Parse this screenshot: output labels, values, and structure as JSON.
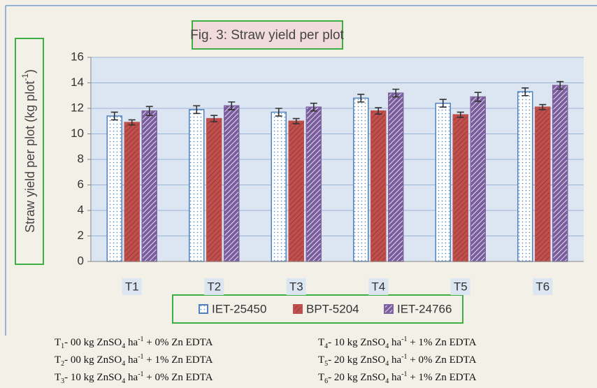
{
  "chart_data": {
    "type": "bar",
    "title": "Fig. 3: Straw yield per plot",
    "y_label": [
      "Straw yield per plot (kg plot",
      "-1",
      ")"
    ],
    "categories": [
      "T1",
      "T2",
      "T3",
      "T4",
      "T5",
      "T6"
    ],
    "series": [
      {
        "name": "IET-25450",
        "color": "#4f81bd",
        "pattern": "dots",
        "values": [
          11.4,
          11.9,
          11.7,
          12.8,
          12.4,
          13.3
        ],
        "errors": [
          0.3,
          0.3,
          0.3,
          0.3,
          0.3,
          0.3
        ]
      },
      {
        "name": "BPT-5204",
        "color": "#c0504d",
        "pattern": "hatch",
        "values": [
          10.9,
          11.2,
          11.0,
          11.8,
          11.5,
          12.1
        ],
        "errors": [
          0.2,
          0.25,
          0.2,
          0.25,
          0.2,
          0.2
        ]
      },
      {
        "name": "IET-24766",
        "color": "#8064a2",
        "pattern": "stripes",
        "values": [
          11.8,
          12.2,
          12.1,
          13.2,
          12.9,
          13.8
        ],
        "errors": [
          0.35,
          0.3,
          0.3,
          0.3,
          0.35,
          0.3
        ]
      }
    ],
    "ylim": [
      0,
      16
    ],
    "yticks": [
      0,
      2,
      4,
      6,
      8,
      10,
      12,
      14,
      16
    ],
    "grid": true,
    "notes": [
      [
        "T",
        "1",
        "- 00 kg ZnSO",
        "4",
        " ha",
        "-1",
        " + 0% Zn EDTA"
      ],
      [
        "T",
        "2",
        "- 00 kg ZnSO",
        "4",
        " ha",
        "-1",
        " + 1% Zn EDTA"
      ],
      [
        "T",
        "3",
        "- 10 kg ZnSO",
        "4",
        " ha",
        "-1",
        " + 0% Zn EDTA"
      ],
      [
        "T",
        "4",
        "- 10 kg ZnSO",
        "4",
        " ha",
        "-1",
        " + 1% Zn EDTA"
      ],
      [
        "T",
        "5",
        "- 20 kg ZnSO",
        "4",
        " ha",
        "-1",
        " + 0% Zn EDTA"
      ],
      [
        "T",
        "6",
        "- 20 kg ZnSO",
        "4",
        " ha",
        "-1",
        " + 1% Zn EDTA"
      ]
    ]
  }
}
